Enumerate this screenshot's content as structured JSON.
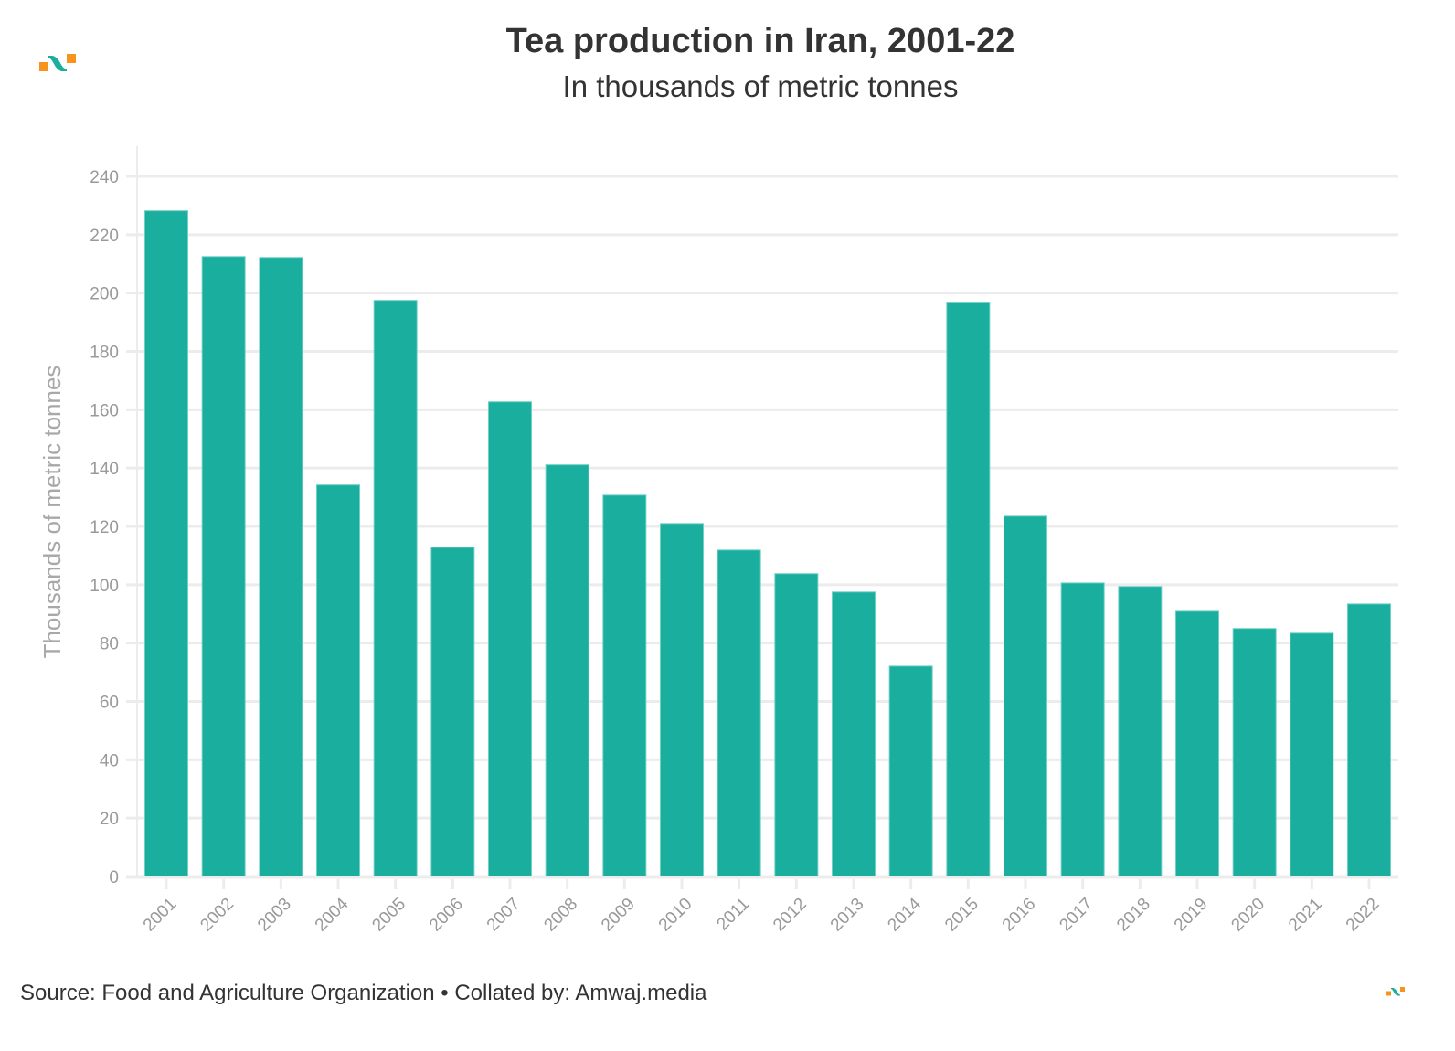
{
  "header": {
    "title": "Tea production in Iran, 2001-22",
    "subtitle": "In thousands of metric tonnes"
  },
  "footer": {
    "source_text": "Source: Food and Agriculture Organization • Collated by: Amwaj.media"
  },
  "brand": {
    "logo_icon": "amwaj-logo-icon",
    "colors": {
      "orange": "#f7941d",
      "teal": "#1aae9f"
    }
  },
  "chart_data": {
    "type": "bar",
    "title": "Tea production in Iran, 2001-22",
    "subtitle": "In thousands of metric tonnes",
    "xlabel": "",
    "ylabel": "Thousands of metric tonnes",
    "ylim": [
      0,
      250
    ],
    "yticks": [
      0,
      20,
      40,
      60,
      80,
      100,
      120,
      140,
      160,
      180,
      200,
      220,
      240
    ],
    "grid": true,
    "legend": "none",
    "bar_color": "#1aae9f",
    "categories": [
      "2001",
      "2002",
      "2003",
      "2004",
      "2005",
      "2006",
      "2007",
      "2008",
      "2009",
      "2010",
      "2011",
      "2012",
      "2013",
      "2014",
      "2015",
      "2016",
      "2017",
      "2018",
      "2019",
      "2020",
      "2021",
      "2022"
    ],
    "values": [
      228.2,
      212.5,
      212.2,
      134.2,
      197.5,
      112.8,
      162.7,
      141.1,
      130.7,
      121.0,
      111.9,
      103.8,
      97.5,
      72.1,
      196.9,
      123.5,
      100.6,
      99.4,
      90.9,
      85.0,
      83.4,
      93.4
    ]
  }
}
